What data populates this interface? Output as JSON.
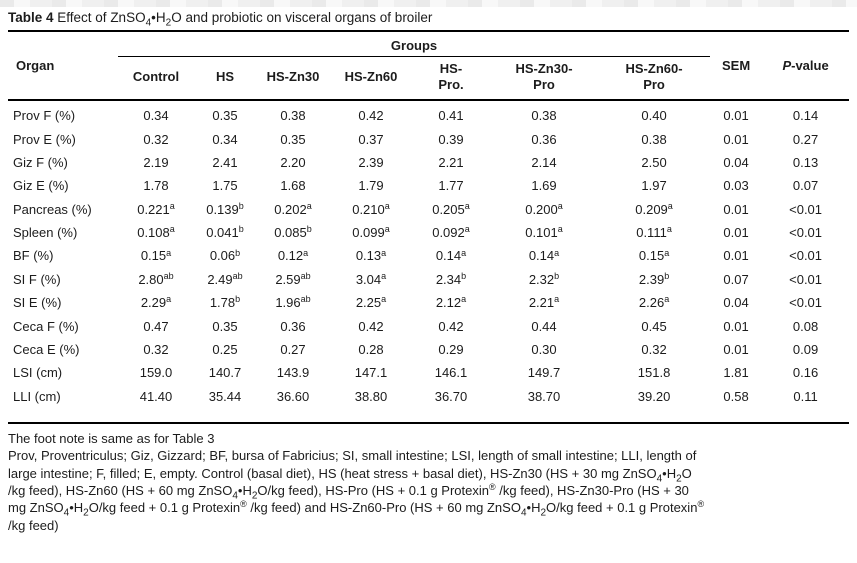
{
  "colors": {
    "text": "#1c1c1c",
    "rule": "#000000",
    "background": "#ffffff"
  },
  "title": {
    "label": "Table 4",
    "text": " Effect of ZnSO~4~•H~2~O and probiotic on visceral organs of broiler"
  },
  "table": {
    "organ_header": "Organ",
    "groups_header": "Groups",
    "group_columns": [
      "Control",
      "HS",
      "HS-Zn30",
      "HS-Zn60",
      "HS-|Pro.",
      "HS-Zn30-|Pro",
      "HS-Zn60-|Pro"
    ],
    "sem_header": "SEM",
    "pvalue_header": "*P*-value",
    "rows": [
      {
        "organ": "Prov F (%)",
        "values": [
          "0.34",
          "0.35",
          "0.38",
          "0.42",
          "0.41",
          "0.38",
          "0.40"
        ],
        "sem": "0.01",
        "p": "0.14"
      },
      {
        "organ": "Prov E (%)",
        "values": [
          "0.32",
          "0.34",
          "0.35",
          "0.37",
          "0.39",
          "0.36",
          "0.38"
        ],
        "sem": "0.01",
        "p": "0.27"
      },
      {
        "organ": "Giz F (%)",
        "values": [
          "2.19",
          "2.41",
          "2.20",
          "2.39",
          "2.21",
          "2.14",
          "2.50"
        ],
        "sem": "0.04",
        "p": "0.13"
      },
      {
        "organ": "Giz E (%)",
        "values": [
          "1.78",
          "1.75",
          "1.68",
          "1.79",
          "1.77",
          "1.69",
          "1.97"
        ],
        "sem": "0.03",
        "p": "0.07"
      },
      {
        "organ": "Pancreas (%)",
        "values": [
          "0.221^a^",
          "0.139^b^",
          "0.202^a^",
          "0.210^a^",
          "0.205^a^",
          "0.200^a^",
          "0.209^a^"
        ],
        "sem": "0.01",
        "p": "<0.01"
      },
      {
        "organ": "Spleen (%)",
        "values": [
          "0.108^a^",
          "0.041^b^",
          "0.085^b^",
          "0.099^a^",
          "0.092^a^",
          "0.101^a^",
          "0.111^a^"
        ],
        "sem": "0.01",
        "p": "<0.01"
      },
      {
        "organ": "BF (%)",
        "values": [
          "0.15^a^",
          "0.06^b^",
          "0.12^a^",
          "0.13^a^",
          "0.14^a^",
          "0.14^a^",
          "0.15^a^"
        ],
        "sem": "0.01",
        "p": "<0.01"
      },
      {
        "organ": "SI F (%)",
        "values": [
          "2.80^ab^",
          "2.49^ab^",
          "2.59^ab^",
          "3.04^a^",
          "2.34^b^",
          "2.32^b^",
          "2.39^b^"
        ],
        "sem": "0.07",
        "p": "<0.01"
      },
      {
        "organ": "SI E (%)",
        "values": [
          "2.29^a^",
          "1.78^b^",
          "1.96^ab^",
          "2.25^a^",
          "2.12^a^",
          "2.21^a^",
          "2.26^a^"
        ],
        "sem": "0.04",
        "p": "<0.01"
      },
      {
        "organ": "Ceca F (%)",
        "values": [
          "0.47",
          "0.35",
          "0.36",
          "0.42",
          "0.42",
          "0.44",
          "0.45"
        ],
        "sem": "0.01",
        "p": "0.08"
      },
      {
        "organ": "Ceca E (%)",
        "values": [
          "0.32",
          "0.25",
          "0.27",
          "0.28",
          "0.29",
          "0.30",
          "0.32"
        ],
        "sem": "0.01",
        "p": "0.09"
      },
      {
        "organ": "LSI (cm)",
        "values": [
          "159.0",
          "140.7",
          "143.9",
          "147.1",
          "146.1",
          "149.7",
          "151.8"
        ],
        "sem": "1.81",
        "p": "0.16"
      },
      {
        "organ": "LLI (cm)",
        "values": [
          "41.40",
          "35.44",
          "36.60",
          "38.80",
          "36.70",
          "38.70",
          "39.20"
        ],
        "sem": "0.58",
        "p": "0.11"
      }
    ]
  },
  "footnote": {
    "lines": [
      "The foot note is same as for Table 3",
      "Prov, Proventriculus; Giz, Gizzard; BF, bursa of Fabricius; SI, small intestine; LSI, length of small intestine; LLI, length of",
      "large intestine; F, filled; E, empty. Control (basal diet), HS (heat stress + basal diet), HS-Zn30 (HS + 30 mg ZnSO~4~•H~2~O",
      "/kg feed), HS-Zn60 (HS + 60 mg ZnSO~4~•H~2~O/kg feed), HS-Pro (HS + 0.1 g Protexin^®^ /kg feed), HS-Zn30-Pro (HS + 30",
      "mg ZnSO~4~•H~2~O/kg feed + 0.1 g Protexin^®^ /kg feed) and HS-Zn60-Pro (HS + 60 mg ZnSO~4~•H~2~O/kg feed + 0.1 g Protexin^®^",
      "/kg feed)"
    ]
  }
}
